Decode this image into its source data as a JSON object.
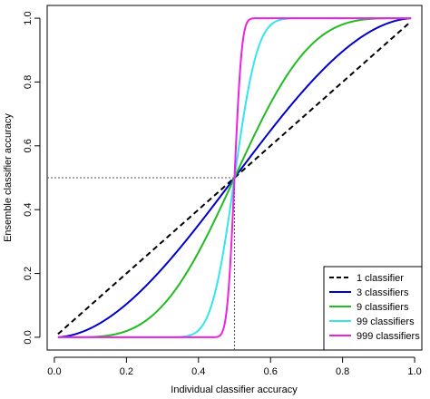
{
  "chart_data": {
    "type": "line",
    "xlabel": "Individual classifier accuracy",
    "ylabel": "Ensemble classifier accuracy",
    "xlim": [
      -0.02,
      1.02
    ],
    "ylim": [
      -0.04,
      1.04
    ],
    "xticks": [
      "0.0",
      "0.2",
      "0.4",
      "0.6",
      "0.8",
      "1.0"
    ],
    "yticks": [
      "0.0",
      "0.2",
      "0.4",
      "0.6",
      "0.8",
      "1.0"
    ],
    "x_range": [
      0.01,
      0.99
    ],
    "reference_lines": {
      "x": 0.5,
      "y": 0.5,
      "style": "dotted"
    },
    "legend_position": "bottom-right",
    "series": [
      {
        "name": "1 classifier",
        "n": 1,
        "color": "#000000",
        "dash": true
      },
      {
        "name": "3 classifiers",
        "n": 3,
        "color": "#0000cc",
        "dash": false
      },
      {
        "name": "9 classifiers",
        "n": 9,
        "color": "#22bb22",
        "dash": false
      },
      {
        "name": "99 classifiers",
        "n": 99,
        "color": "#33e5ee",
        "dash": false
      },
      {
        "name": "999 classifiers",
        "n": 999,
        "color": "#ee22dd",
        "dash": false
      }
    ]
  }
}
